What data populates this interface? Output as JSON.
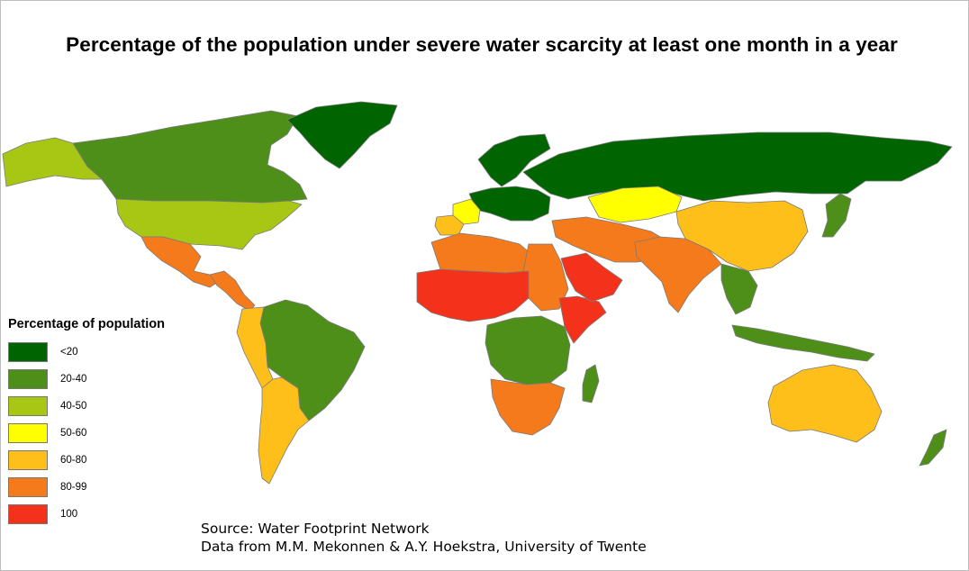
{
  "title": "Percentage of the population under severe water scarcity at least one month in a year",
  "legend": {
    "title": "Percentage of population",
    "items": [
      {
        "label": "<20",
        "color": "#006400"
      },
      {
        "label": "20-40",
        "color": "#4e8f1a"
      },
      {
        "label": "40-50",
        "color": "#a8c614"
      },
      {
        "label": "50-60",
        "color": "#ffff00"
      },
      {
        "label": "60-80",
        "color": "#ffbf1a"
      },
      {
        "label": "80-99",
        "color": "#f57a1c"
      },
      {
        "label": "100",
        "color": "#f4321c"
      }
    ]
  },
  "source": {
    "line1": "Source: Water Footprint Network",
    "line2": "Data from M.M. Mekonnen & A.Y. Hoekstra, University of Twente"
  },
  "regions": [
    {
      "name": "canada",
      "category": "20-40"
    },
    {
      "name": "alaska",
      "category": "40-50"
    },
    {
      "name": "usa",
      "category": "40-50"
    },
    {
      "name": "greenland",
      "category": "<20"
    },
    {
      "name": "mexico",
      "category": "80-99"
    },
    {
      "name": "central-america",
      "category": "80-99"
    },
    {
      "name": "brazil",
      "category": "20-40"
    },
    {
      "name": "andean-south-america",
      "category": "60-80"
    },
    {
      "name": "southern-cone",
      "category": "60-80"
    },
    {
      "name": "russia",
      "category": "<20"
    },
    {
      "name": "scandinavia",
      "category": "<20"
    },
    {
      "name": "western-europe",
      "category": "<20"
    },
    {
      "name": "iberia",
      "category": "60-80"
    },
    {
      "name": "france",
      "category": "50-60"
    },
    {
      "name": "north-africa",
      "category": "80-99"
    },
    {
      "name": "west-africa-sahel",
      "category": "100"
    },
    {
      "name": "egypt-sudan",
      "category": "80-99"
    },
    {
      "name": "horn-of-africa",
      "category": "100"
    },
    {
      "name": "central-africa",
      "category": "20-40"
    },
    {
      "name": "southern-africa",
      "category": "80-99"
    },
    {
      "name": "madagascar",
      "category": "20-40"
    },
    {
      "name": "arabian-peninsula",
      "category": "100"
    },
    {
      "name": "middle-east",
      "category": "80-99"
    },
    {
      "name": "kazakhstan",
      "category": "50-60"
    },
    {
      "name": "india",
      "category": "80-99"
    },
    {
      "name": "china",
      "category": "60-80"
    },
    {
      "name": "southeast-asia",
      "category": "20-40"
    },
    {
      "name": "indonesia",
      "category": "20-40"
    },
    {
      "name": "australia",
      "category": "60-80"
    },
    {
      "name": "new-zealand",
      "category": "20-40"
    },
    {
      "name": "japan",
      "category": "20-40"
    }
  ]
}
